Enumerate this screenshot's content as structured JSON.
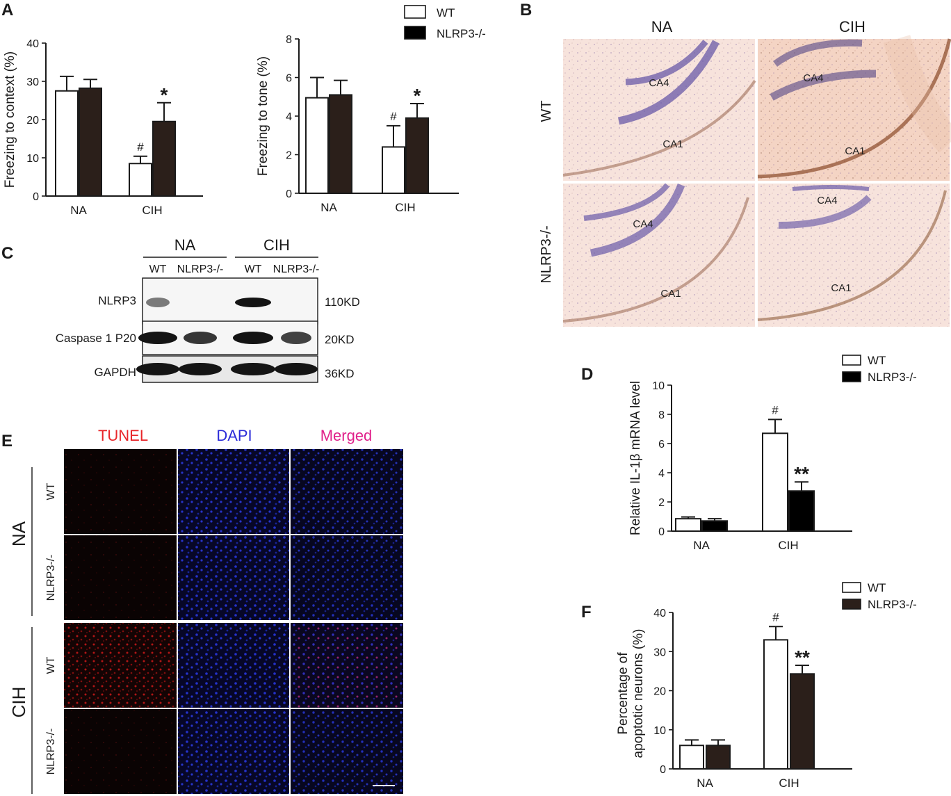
{
  "panels": {
    "a": "A",
    "b": "B",
    "c": "C",
    "d": "D",
    "e": "E",
    "f": "F"
  },
  "legend_top": [
    "WT",
    "NLRP3-/-"
  ],
  "chart_data": [
    {
      "id": "A1",
      "type": "bar",
      "categories": [
        "NA",
        "CIH"
      ],
      "series": [
        {
          "name": "WT",
          "values": [
            27.5,
            8.5
          ],
          "errors": [
            3.8,
            1.9
          ]
        },
        {
          "name": "NLRP3-/-",
          "values": [
            28.2,
            19.5
          ],
          "errors": [
            2.3,
            4.9
          ]
        }
      ],
      "ylabel": "Freezing to context (%)",
      "ylim": [
        0,
        40
      ],
      "yticks": [
        0,
        10,
        20,
        30,
        40
      ],
      "annotations": [
        {
          "category": "CIH",
          "series": "WT",
          "text": "#"
        },
        {
          "category": "CIH",
          "series": "NLRP3-/-",
          "text": "*"
        }
      ]
    },
    {
      "id": "A2",
      "type": "bar",
      "categories": [
        "NA",
        "CIH"
      ],
      "series": [
        {
          "name": "WT",
          "values": [
            4.95,
            2.4
          ],
          "errors": [
            1.05,
            1.1
          ]
        },
        {
          "name": "NLRP3-/-",
          "values": [
            5.1,
            3.9
          ],
          "errors": [
            0.75,
            0.75
          ]
        }
      ],
      "ylabel": "Freezing to tone (%)",
      "ylim": [
        0,
        8
      ],
      "yticks": [
        0,
        2,
        4,
        6,
        8
      ],
      "annotations": [
        {
          "category": "CIH",
          "series": "WT",
          "text": "#"
        },
        {
          "category": "CIH",
          "series": "NLRP3-/-",
          "text": "*"
        }
      ]
    },
    {
      "id": "D",
      "type": "bar",
      "categories": [
        "NA",
        "CIH"
      ],
      "series": [
        {
          "name": "WT",
          "values": [
            0.85,
            6.7
          ],
          "errors": [
            0.12,
            0.95
          ]
        },
        {
          "name": "NLRP3-/-",
          "values": [
            0.7,
            2.75
          ],
          "errors": [
            0.15,
            0.62
          ]
        }
      ],
      "ylabel": "Relative IL-1β mRNA level",
      "ylim": [
        0,
        10
      ],
      "yticks": [
        0,
        2,
        4,
        6,
        8,
        10
      ],
      "legend": [
        "WT",
        "NLRP3-/-"
      ],
      "annotations": [
        {
          "category": "CIH",
          "series": "WT",
          "text": "#"
        },
        {
          "category": "CIH",
          "series": "NLRP3-/-",
          "text": "**"
        }
      ]
    },
    {
      "id": "F",
      "type": "bar",
      "categories": [
        "NA",
        "CIH"
      ],
      "series": [
        {
          "name": "WT",
          "values": [
            6.0,
            33.0
          ],
          "errors": [
            1.4,
            3.4
          ]
        },
        {
          "name": "NLRP3-/-",
          "values": [
            6.0,
            24.3
          ],
          "errors": [
            1.4,
            2.2
          ]
        }
      ],
      "ylabel_lines": [
        "Percentage of",
        "apoptotic  neurons (%)"
      ],
      "ylim": [
        0,
        40
      ],
      "yticks": [
        0,
        10,
        20,
        30,
        40
      ],
      "legend": [
        "WT",
        "NLRP3-/-"
      ],
      "annotations": [
        {
          "category": "CIH",
          "series": "WT",
          "text": "#"
        },
        {
          "category": "CIH",
          "series": "NLRP3-/-",
          "text": "**"
        }
      ]
    }
  ],
  "histology": {
    "columns": [
      "NA",
      "CIH"
    ],
    "rows": [
      "WT",
      "NLRP3-/-"
    ],
    "regions": {
      "wt_na": [
        "CA4",
        "CA1"
      ],
      "wt_cih": [
        "CA4",
        "CA1"
      ],
      "ko_na": [
        "CA4",
        "CA1"
      ],
      "ko_cih": [
        "CA4",
        "CA1"
      ]
    }
  },
  "western_blot": {
    "groups": [
      "NA",
      "CIH"
    ],
    "lanes": [
      "WT",
      "NLRP3-/-",
      "WT",
      "NLRP3-/-"
    ],
    "bands": [
      {
        "protein": "NLRP3",
        "size": "110KD"
      },
      {
        "protein": "Caspase 1 P20",
        "size": "20KD"
      },
      {
        "protein": "GAPDH",
        "size": "36KD"
      }
    ]
  },
  "fluorescence": {
    "channels": [
      "TUNEL",
      "DAPI",
      "Merged"
    ],
    "channel_colors": [
      "#e8262a",
      "#2b2bd8",
      "#e0208a"
    ],
    "groups": [
      "NA",
      "CIH"
    ],
    "rows": [
      "WT",
      "NLRP3-/-",
      "WT",
      "NLRP3-/-"
    ]
  }
}
